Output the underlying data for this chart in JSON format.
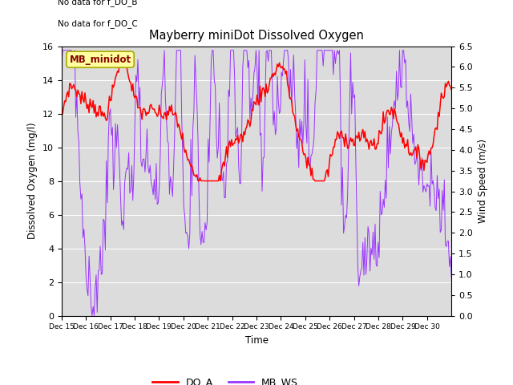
{
  "title": "Mayberry miniDot Dissolved Oxygen",
  "xlabel": "Time",
  "ylabel_left": "Dissolved Oxygen (mg/l)",
  "ylabel_right": "Wind Speed (m/s)",
  "text_no_data": [
    "No data for f_DO_B",
    "No data for f_DO_C"
  ],
  "legend_label_box": "MB_minidot",
  "ylim_left": [
    0,
    16
  ],
  "ylim_right": [
    0.0,
    6.5
  ],
  "yticks_left": [
    0,
    2,
    4,
    6,
    8,
    10,
    12,
    14,
    16
  ],
  "yticks_right": [
    0.0,
    0.5,
    1.0,
    1.5,
    2.0,
    2.5,
    3.0,
    3.5,
    4.0,
    4.5,
    5.0,
    5.5,
    6.0,
    6.5
  ],
  "xtick_labels": [
    "Dec 15",
    "Dec 16",
    "Dec 17",
    "Dec 18",
    "Dec 19",
    "Dec 20",
    "Dec 21",
    "Dec 22",
    "Dec 23",
    "Dec 24",
    "Dec 25",
    "Dec 26",
    "Dec 27",
    "Dec 28",
    "Dec 29",
    "Dec 30"
  ],
  "color_DO_A": "#FF0000",
  "color_MB_WS": "#9933FF",
  "background_color": "#DCDCDC",
  "fig_background": "#FFFFFF",
  "grid_color": "#FFFFFF",
  "legend_DO_A": "DO_A",
  "legend_MB_WS": "MB_WS",
  "box_facecolor": "#FFFFA0",
  "box_edgecolor": "#AAAA00",
  "box_textcolor": "#880000"
}
